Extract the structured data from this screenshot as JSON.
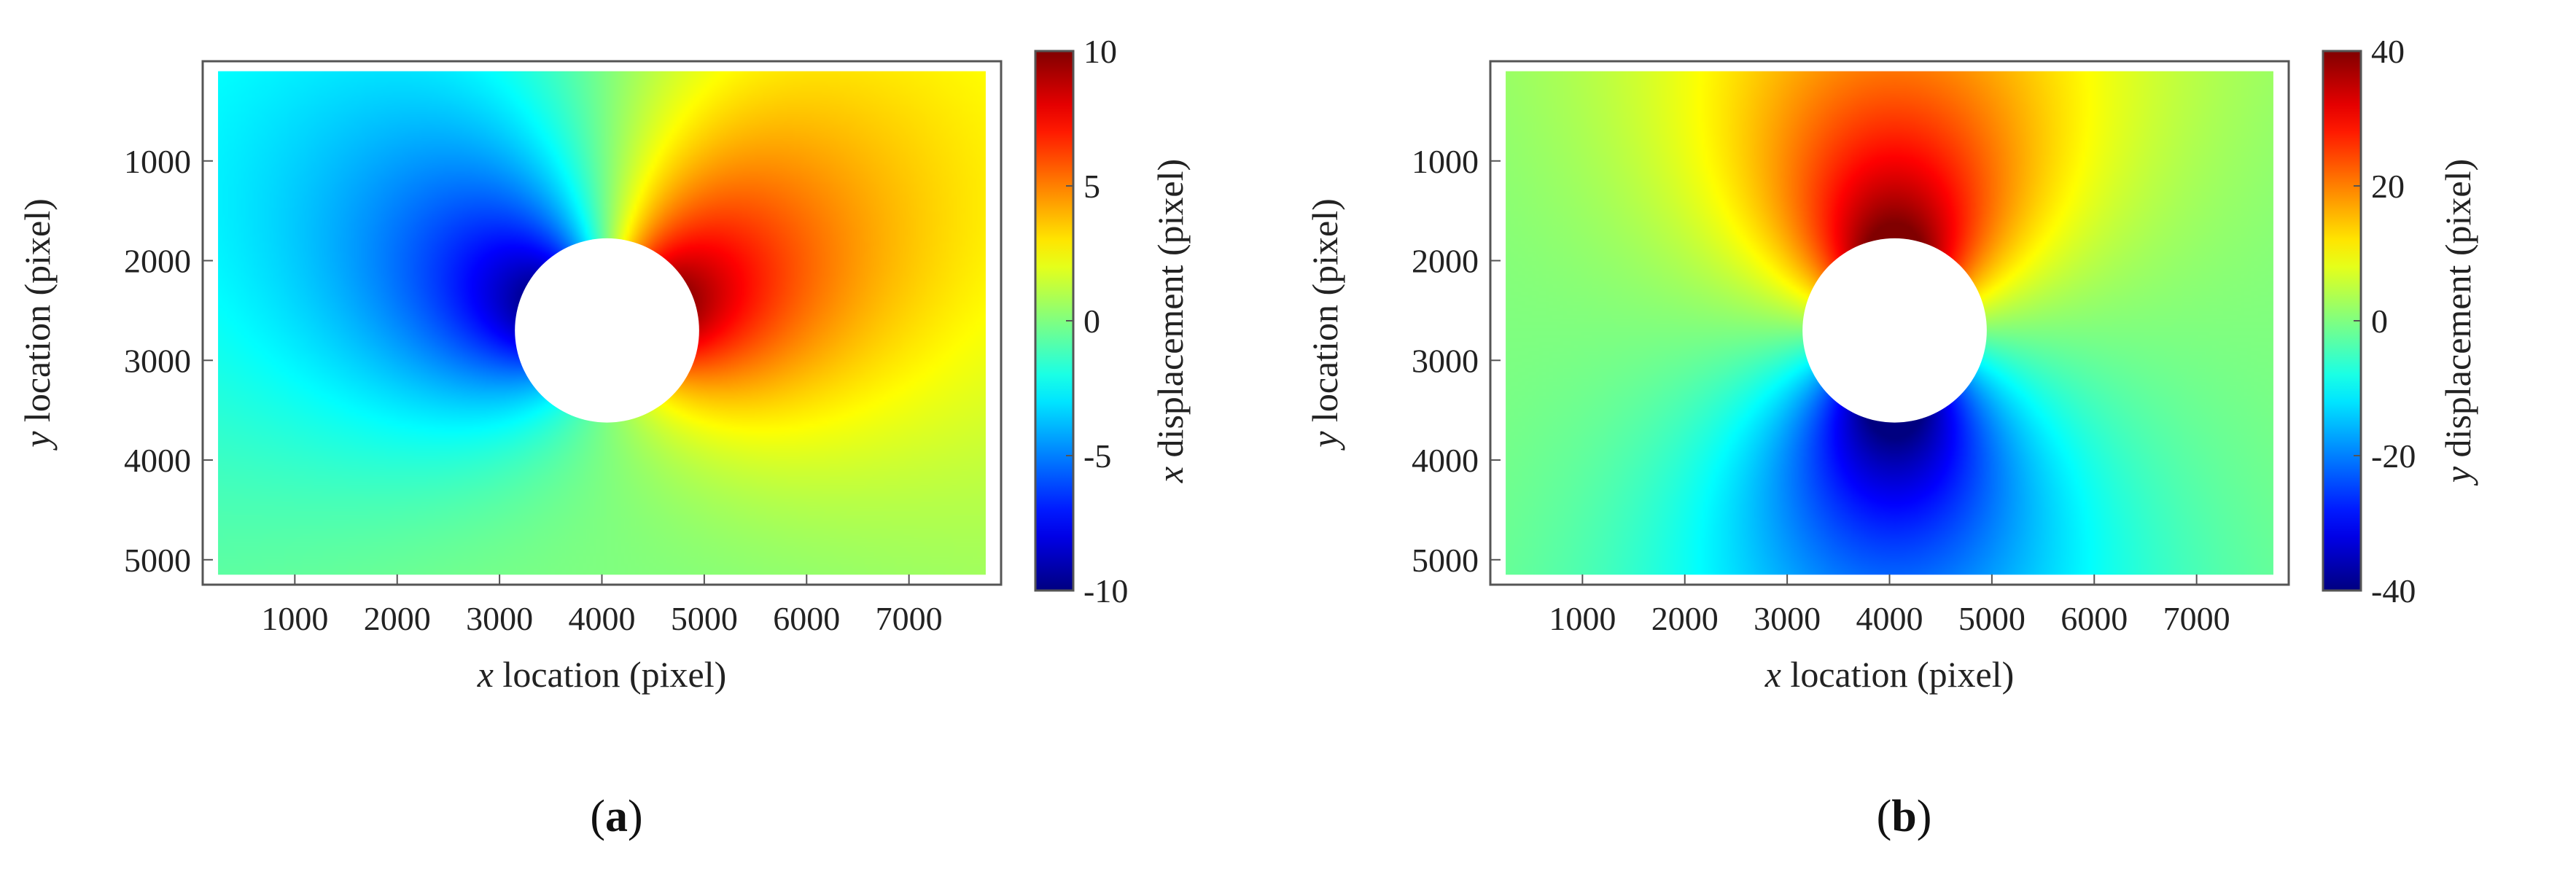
{
  "chart_data": [
    {
      "type": "heatmap",
      "panel_label_letter": "a",
      "xlabel_var": "x",
      "xlabel_rest": " location (pixel)",
      "ylabel_var": "y",
      "ylabel_rest": " location (pixel)",
      "colorbar_label_var": "x",
      "colorbar_label_rest": " displacement (pixel)",
      "xticks": [
        "1000",
        "2000",
        "3000",
        "4000",
        "5000",
        "6000",
        "7000"
      ],
      "yticks": [
        "1000",
        "2000",
        "3000",
        "4000",
        "5000"
      ],
      "colorbar_ticks": [
        "10",
        "5",
        "0",
        "-5",
        "-10"
      ],
      "xlim": [
        100,
        7900
      ],
      "ylim": [
        0,
        5250
      ],
      "clim": [
        -10,
        10
      ],
      "y_axis_inverted": true,
      "colormap": "jet",
      "field": "x_displacement",
      "field_peak_magnitude": 9,
      "hole_center": [
        4050,
        2700
      ],
      "hole_radius": 900
    },
    {
      "type": "heatmap",
      "panel_label_letter": "b",
      "xlabel_var": "x",
      "xlabel_rest": " location (pixel)",
      "ylabel_var": "y",
      "ylabel_rest": " location (pixel)",
      "colorbar_label_var": "y",
      "colorbar_label_rest": " displacement (pixel)",
      "xticks": [
        "1000",
        "2000",
        "3000",
        "4000",
        "5000",
        "6000",
        "7000"
      ],
      "yticks": [
        "1000",
        "2000",
        "3000",
        "4000",
        "5000"
      ],
      "colorbar_ticks": [
        "40",
        "20",
        "0",
        "-20",
        "-40"
      ],
      "xlim": [
        100,
        7900
      ],
      "ylim": [
        0,
        5250
      ],
      "clim": [
        -40,
        40
      ],
      "y_axis_inverted": true,
      "colormap": "jet",
      "field": "y_displacement",
      "field_peak_magnitude": 36,
      "hole_center": [
        4050,
        2700
      ],
      "hole_radius": 900
    }
  ]
}
